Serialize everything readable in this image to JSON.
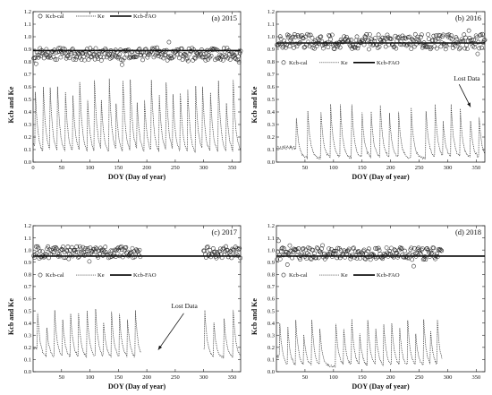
{
  "chart_data": [
    {
      "type": "line",
      "panel": "a",
      "title": "(a) 2015",
      "xlabel": "DOY (Day of year)",
      "ylabel": "Kcb and Ke",
      "xlim": [
        0,
        365
      ],
      "ylim": [
        0,
        1.2
      ],
      "xticks": [
        0,
        50,
        100,
        150,
        200,
        250,
        300,
        350
      ],
      "yticks": [
        0.0,
        0.1,
        0.2,
        0.3,
        0.4,
        0.5,
        0.6,
        0.7,
        0.8,
        0.9,
        1.0,
        1.1,
        1.2
      ],
      "legend": [
        "Kcb-cal",
        "Ke",
        "Kcb-FAO"
      ],
      "legend_position": "top-left",
      "kcb_fao": 0.89,
      "kcb_cal_range": [
        1,
        365
      ],
      "kcb_cal_mean": 0.86,
      "kcb_cal_spread": 0.05,
      "ke_range": [
        1,
        365
      ],
      "ke_pulse_days": [
        4,
        18,
        30,
        43,
        57,
        70,
        82,
        96,
        108,
        120,
        134,
        146,
        158,
        171,
        183,
        196,
        208,
        222,
        234,
        246,
        259,
        272,
        286,
        298,
        312,
        326,
        340,
        352
      ],
      "ke_peak": 0.65,
      "ke_floor": 0.05,
      "annotation": null,
      "arrow": null
    },
    {
      "type": "line",
      "panel": "b",
      "title": "(b) 2016",
      "xlabel": "DOY (Day of year)",
      "ylabel": "Kcb and Ke",
      "xlim": [
        0,
        365
      ],
      "ylim": [
        0,
        1.2
      ],
      "xticks": [
        50,
        100,
        150,
        200,
        250,
        300,
        350
      ],
      "yticks": [
        0.0,
        0.1,
        0.2,
        0.3,
        0.4,
        0.5,
        0.6,
        0.7,
        0.8,
        0.9,
        1.0,
        1.1,
        1.2
      ],
      "legend": [
        "Kcb-cal",
        "Ke",
        "Kcb-FAO"
      ],
      "legend_position": "upper-left",
      "kcb_fao": 0.95,
      "kcb_cal_range": [
        1,
        365
      ],
      "kcb_cal_mean": 0.96,
      "kcb_cal_spread": 0.06,
      "ke_range": [
        1,
        365
      ],
      "ke_pulse_days": [
        35,
        55,
        78,
        95,
        112,
        132,
        150,
        166,
        182,
        198,
        214,
        236,
        262,
        278,
        292,
        306,
        322,
        340,
        355
      ],
      "ke_peak": 0.45,
      "ke_floor": 0.02,
      "annotation": "Lost Data",
      "arrow": {
        "from": [
          320,
          0.62
        ],
        "to": [
          340,
          0.44
        ]
      }
    },
    {
      "type": "line",
      "panel": "c",
      "title": "(c) 2017",
      "xlabel": "DOY (Day of year)",
      "ylabel": "Kcb and Ke",
      "xlim": [
        0,
        365
      ],
      "ylim": [
        0,
        1.2
      ],
      "xticks": [
        50,
        100,
        150,
        200,
        250,
        300,
        350
      ],
      "yticks": [
        0.0,
        0.1,
        0.2,
        0.3,
        0.4,
        0.5,
        0.6,
        0.7,
        0.8,
        0.9,
        1.0,
        1.1,
        1.2
      ],
      "legend": [
        "Kcb-cal",
        "Ke",
        "Kcb-FAO"
      ],
      "legend_position": "upper-left",
      "kcb_fao": 0.95,
      "kcb_cal_range": [
        1,
        190
      ],
      "kcb_cal_range2": [
        300,
        365
      ],
      "kcb_cal_mean": 0.98,
      "kcb_cal_spread": 0.05,
      "ke_range": [
        1,
        190
      ],
      "ke_range2": [
        300,
        365
      ],
      "ke_pulse_days": [
        8,
        24,
        38,
        52,
        66,
        80,
        95,
        110,
        124,
        138,
        152,
        166,
        180,
        302,
        318,
        336,
        352
      ],
      "ke_peak": 0.5,
      "ke_floor": 0.1,
      "annotation": "Lost Data",
      "arrow": {
        "from": [
          265,
          0.48
        ],
        "to": [
          220,
          0.18
        ]
      }
    },
    {
      "type": "line",
      "panel": "d",
      "title": "(d) 2018",
      "xlabel": "DOY (Day of year)",
      "ylabel": "Kcb and Ke",
      "xlim": [
        0,
        365
      ],
      "ylim": [
        0,
        1.2
      ],
      "xticks": [
        50,
        100,
        150,
        200,
        250,
        300,
        350
      ],
      "yticks": [
        0.0,
        0.1,
        0.2,
        0.3,
        0.4,
        0.5,
        0.6,
        0.7,
        0.8,
        0.9,
        1.0,
        1.1,
        1.2
      ],
      "legend": [
        "Kcb-cal",
        "Ke",
        "Kcb-FAO"
      ],
      "legend_position": "upper-left",
      "kcb_fao": 0.95,
      "kcb_cal_range": [
        1,
        290
      ],
      "kcb_cal_mean": 0.97,
      "kcb_cal_spread": 0.05,
      "ke_range": [
        1,
        290
      ],
      "ke_pulse_days": [
        6,
        20,
        34,
        48,
        62,
        76,
        104,
        118,
        132,
        146,
        160,
        174,
        188,
        202,
        216,
        230,
        244,
        258,
        270,
        282
      ],
      "ke_peak": 0.42,
      "ke_floor": 0.03,
      "annotation": null,
      "arrow": null
    }
  ]
}
